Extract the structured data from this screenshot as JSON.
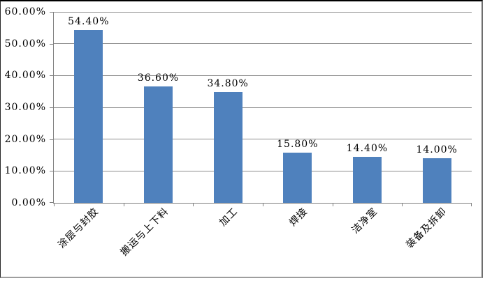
{
  "chart_data": {
    "type": "bar",
    "title": "",
    "xlabel": "",
    "ylabel": "",
    "categories": [
      "涂层与封胶",
      "搬运与上下料",
      "加工",
      "焊接",
      "洁净室",
      "装备及拆卸"
    ],
    "values": [
      54.4,
      36.6,
      34.8,
      15.8,
      14.4,
      14.0
    ],
    "data_labels": [
      "54.40%",
      "36.60%",
      "34.80%",
      "15.80%",
      "14.40%",
      "14.00%"
    ],
    "y_ticks": [
      "0.00%",
      "10.00%",
      "20.00%",
      "30.00%",
      "40.00%",
      "50.00%",
      "60.00%"
    ],
    "ylim": [
      0,
      60
    ],
    "grid": true,
    "legend": "none",
    "colors": {
      "bar": "#4F81BD",
      "gridline": "#8c8c8c",
      "axis": "#7f7f7f",
      "text": "#000000",
      "background": "#ffffff"
    }
  }
}
